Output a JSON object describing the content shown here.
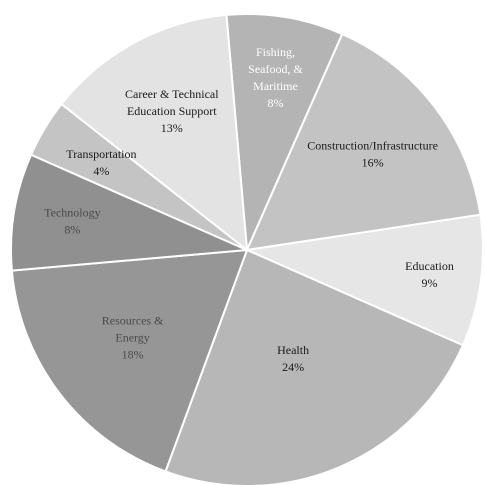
{
  "chart_data": {
    "type": "pie",
    "title": "",
    "slices": [
      {
        "lines": [
          "Fishing,",
          "Seafood, &",
          "Maritime"
        ],
        "pct_label": "8%",
        "value": 8,
        "color": "#b4b4b4",
        "text_color": "#ffffff"
      },
      {
        "lines": [
          "Construction/Infrastructure"
        ],
        "pct_label": "16%",
        "value": 16,
        "color": "#c3c3c3",
        "text_color": "#1a1a1a"
      },
      {
        "lines": [
          "Education"
        ],
        "pct_label": "9%",
        "value": 9,
        "color": "#e6e6e6",
        "text_color": "#1a1a1a"
      },
      {
        "lines": [
          "Health"
        ],
        "pct_label": "24%",
        "value": 24,
        "color": "#b7b7b7",
        "text_color": "#1a1a1a"
      },
      {
        "lines": [
          "Resources &",
          "Energy"
        ],
        "pct_label": "18%",
        "value": 18,
        "color": "#969696",
        "text_color": "#4a4a4a"
      },
      {
        "lines": [
          "Technology"
        ],
        "pct_label": "8%",
        "value": 8,
        "color": "#909090",
        "text_color": "#4a4a4a"
      },
      {
        "lines": [
          "Transportation"
        ],
        "pct_label": "4%",
        "value": 4,
        "color": "#c4c4c4",
        "text_color": "#1a1a1a"
      },
      {
        "lines": [
          "Career & Technical",
          "Education Support"
        ],
        "pct_label": "13%",
        "value": 13,
        "color": "#e3e3e3",
        "text_color": "#1a1a1a"
      }
    ]
  }
}
